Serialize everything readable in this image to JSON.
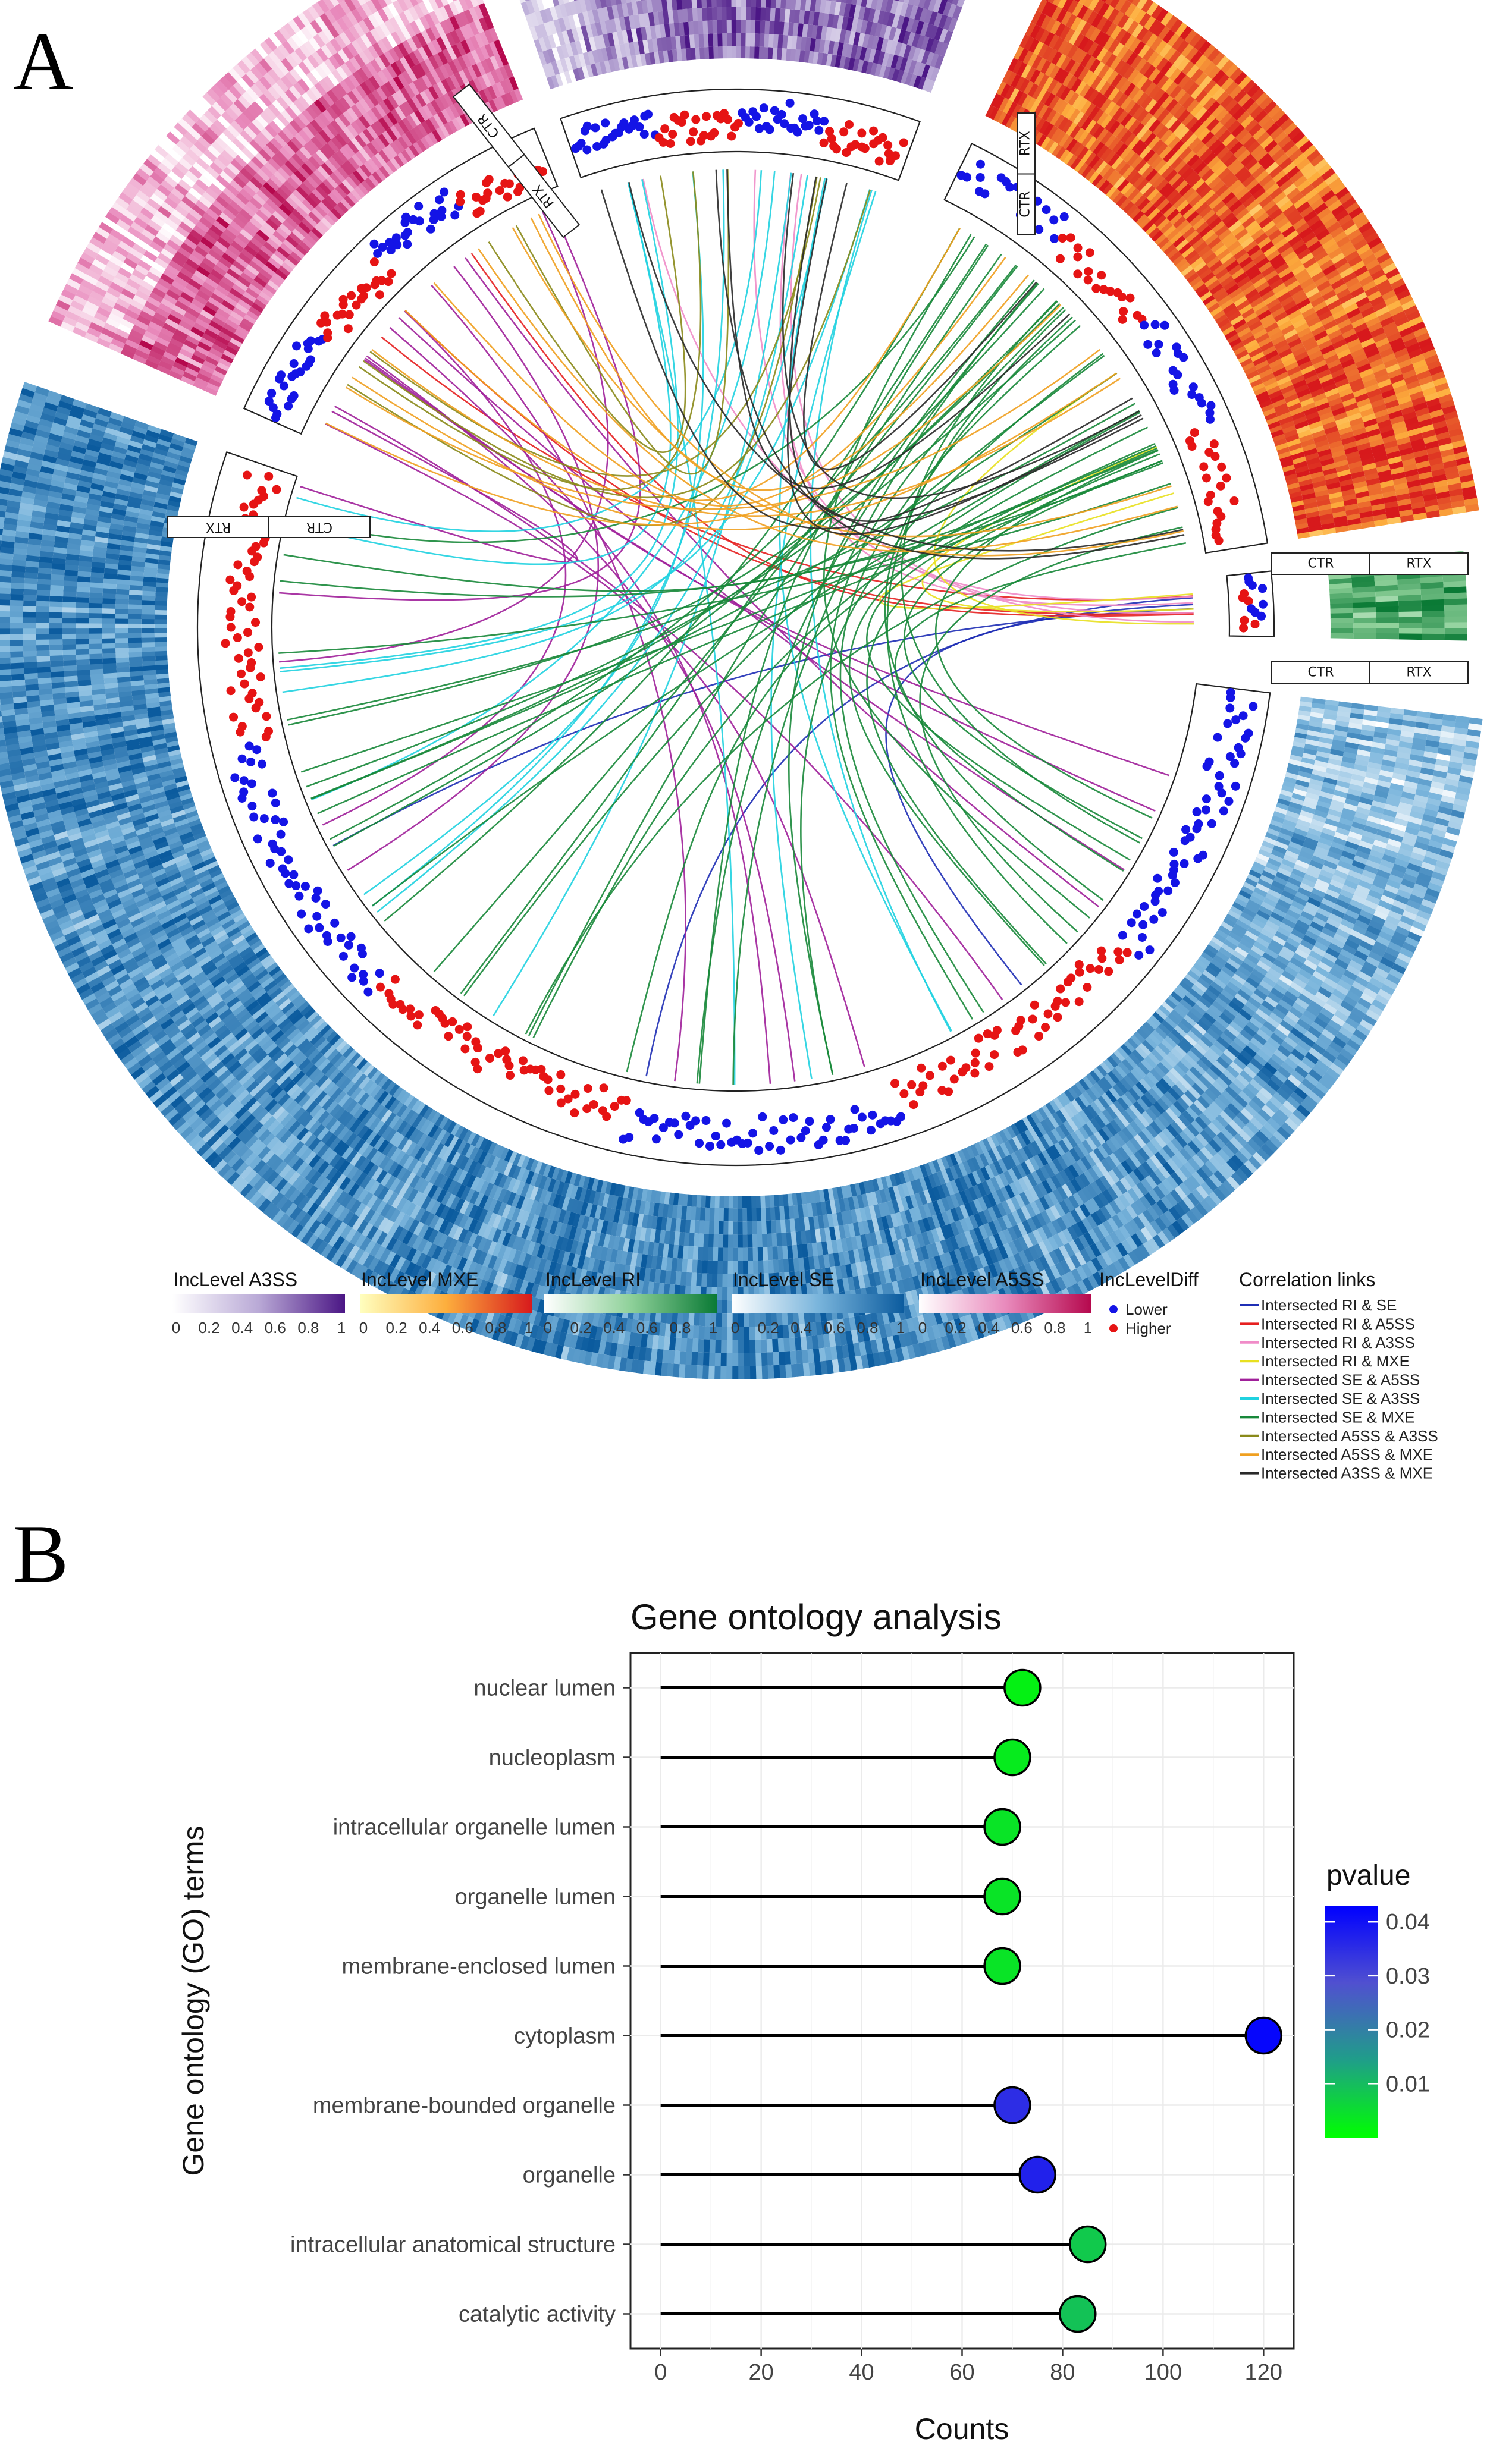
{
  "panel_a": {
    "letter": "A",
    "tracks": [
      {
        "name": "A3SS",
        "ctr_label": "CTR",
        "rtx_label": "RTX"
      },
      {
        "name": "MXE",
        "ctr_label": "CTR",
        "rtx_label": "RTX"
      },
      {
        "name": "RI",
        "ctr_label": "CTR",
        "rtx_label": "RTX"
      },
      {
        "name": "SE",
        "ctr_label": "CTR",
        "rtx_label": "RTX"
      },
      {
        "name": "A5SS",
        "ctr_label": "CTR",
        "rtx_label": "RTX"
      }
    ],
    "legend": {
      "scales": [
        {
          "title": "IncLevel A3SS",
          "colors": [
            "#ffffff",
            "#b9a9d6",
            "#4b1685"
          ],
          "ticks": [
            "0",
            "0.2",
            "0.4",
            "0.6",
            "0.8",
            "1"
          ]
        },
        {
          "title": "IncLevel MXE",
          "colors": [
            "#ffffbf",
            "#fdae3d",
            "#d7191c"
          ],
          "ticks": [
            "0",
            "0.2",
            "0.4",
            "0.6",
            "0.8",
            "1"
          ]
        },
        {
          "title": "IncLevel RI",
          "colors": [
            "#ffffff",
            "#8fd19a",
            "#0a7a35"
          ],
          "ticks": [
            "0",
            "0.2",
            "0.4",
            "0.6",
            "0.8",
            "1"
          ]
        },
        {
          "title": "IncLevel SE",
          "colors": [
            "#ffffff",
            "#7ab5dc",
            "#0b5b9e"
          ],
          "ticks": [
            "0",
            "0.2",
            "0.4",
            "0.6",
            "0.8",
            "1"
          ]
        },
        {
          "title": "IncLevel A5SS",
          "colors": [
            "#ffffff",
            "#e98bbd",
            "#b5084d"
          ],
          "ticks": [
            "0",
            "0.2",
            "0.4",
            "0.6",
            "0.8",
            "1"
          ]
        }
      ],
      "diff": {
        "title": "IncLevelDiff",
        "items": [
          {
            "label": "Lower",
            "color": "#1414e6"
          },
          {
            "label": "Higher",
            "color": "#e61414"
          }
        ]
      },
      "links": {
        "title": "Correlation links",
        "items": [
          {
            "label": "Intersected RI & SE",
            "color": "#1f2fb5"
          },
          {
            "label": "Intersected RI & A5SS",
            "color": "#e62020"
          },
          {
            "label": "Intersected RI & A3SS",
            "color": "#f08cc8"
          },
          {
            "label": "Intersected RI & MXE",
            "color": "#e8e020"
          },
          {
            "label": "Intersected SE & A5SS",
            "color": "#a0209a"
          },
          {
            "label": "Intersected SE & A3SS",
            "color": "#20d2e0"
          },
          {
            "label": "Intersected SE & MXE",
            "color": "#18883a"
          },
          {
            "label": "Intersected A5SS & A3SS",
            "color": "#8a8a1a"
          },
          {
            "label": "Intersected A5SS & MXE",
            "color": "#f0a020"
          },
          {
            "label": "Intersected A3SS & MXE",
            "color": "#2a2a2a"
          }
        ]
      }
    }
  },
  "panel_b": {
    "letter": "B"
  },
  "chart_data": {
    "type": "lollipop",
    "title": "Gene ontology analysis",
    "xlabel": "Counts",
    "ylabel": "Gene ontology (GO) terms",
    "xlim": [
      -6,
      126
    ],
    "xticks": [
      0,
      20,
      40,
      60,
      80,
      100,
      120
    ],
    "categories": [
      "nuclear lumen",
      "nucleoplasm",
      "intracellular organelle lumen",
      "organelle lumen",
      "membrane-enclosed lumen",
      "cytoplasm",
      "membrane-bounded organelle",
      "organelle",
      "intracellular anatomical structure",
      "catalytic activity"
    ],
    "values": [
      72,
      70,
      68,
      68,
      68,
      120,
      70,
      75,
      85,
      83
    ],
    "pvalues": [
      0.002,
      0.003,
      0.004,
      0.004,
      0.004,
      0.042,
      0.035,
      0.037,
      0.008,
      0.009
    ],
    "colorbar": {
      "title": "pvalue",
      "range": [
        0.0,
        0.043
      ],
      "ticks": [
        "0.01",
        "0.02",
        "0.03",
        "0.04"
      ],
      "tick_values": [
        0.01,
        0.02,
        0.03,
        0.04
      ],
      "colors": [
        "#00ff00",
        "#1f9e89",
        "#5050d0",
        "#0000ff"
      ]
    }
  }
}
